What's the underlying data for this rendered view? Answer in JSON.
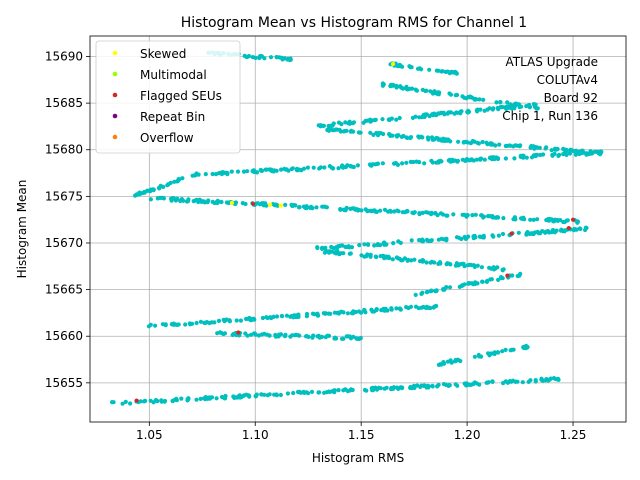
{
  "chart_data": {
    "type": "scatter",
    "title": "Histogram Mean vs Histogram RMS for Channel 1",
    "xlabel": "Histogram RMS",
    "ylabel": "Histogram Mean",
    "xlim": [
      1.022,
      1.275
    ],
    "ylim": [
      15650.8,
      15692.2
    ],
    "xticks": [
      1.05,
      1.1,
      1.15,
      1.2,
      1.25
    ],
    "xtick_labels": [
      "1.05",
      "1.10",
      "1.15",
      "1.20",
      "1.25"
    ],
    "yticks": [
      15655,
      15660,
      15665,
      15670,
      15675,
      15680,
      15685,
      15690
    ],
    "ytick_labels": [
      "15655",
      "15660",
      "15665",
      "15670",
      "15675",
      "15680",
      "15685",
      "15690"
    ],
    "grid": true,
    "legend_position": "top-left",
    "main_color": "#00bfbf",
    "annotation_lines": [
      "ATLAS Upgrade",
      "COLUTAv4",
      "Board 92",
      "Chip 1, Run 136"
    ],
    "legend": [
      {
        "label": "Skewed",
        "color": "#ffff00"
      },
      {
        "label": "Multimodal",
        "color": "#9aff00"
      },
      {
        "label": "Flagged SEUs",
        "color": "#d62728"
      },
      {
        "label": "Repeat Bin",
        "color": "#800080"
      },
      {
        "label": "Overflow",
        "color": "#ff7f0e"
      }
    ],
    "bands": [
      {
        "x1": 1.032,
        "y1": 15652.8,
        "x2": 1.243,
        "y2": 15655.4
      },
      {
        "x1": 1.186,
        "y1": 15657.0,
        "x2": 1.229,
        "y2": 15658.9
      },
      {
        "x1": 1.045,
        "y1": 15661.0,
        "x2": 1.185,
        "y2": 15663.2
      },
      {
        "x1": 1.08,
        "y1": 15660.3,
        "x2": 1.15,
        "y2": 15659.8
      },
      {
        "x1": 1.175,
        "y1": 15664.5,
        "x2": 1.225,
        "y2": 15666.6
      },
      {
        "x1": 1.128,
        "y1": 15669.2,
        "x2": 1.217,
        "y2": 15667.2
      },
      {
        "x1": 1.128,
        "y1": 15669.4,
        "x2": 1.256,
        "y2": 15671.5
      },
      {
        "x1": 1.05,
        "y1": 15674.8,
        "x2": 1.252,
        "y2": 15672.3
      },
      {
        "x1": 1.042,
        "y1": 15675.0,
        "x2": 1.066,
        "y2": 15676.9
      },
      {
        "x1": 1.07,
        "y1": 15677.3,
        "x2": 1.263,
        "y2": 15679.7
      },
      {
        "x1": 1.127,
        "y1": 15682.3,
        "x2": 1.264,
        "y2": 15679.6
      },
      {
        "x1": 1.127,
        "y1": 15682.5,
        "x2": 1.232,
        "y2": 15684.8
      },
      {
        "x1": 1.16,
        "y1": 15687.0,
        "x2": 1.233,
        "y2": 15684.5
      },
      {
        "x1": 1.16,
        "y1": 15689.3,
        "x2": 1.197,
        "y2": 15688.2
      },
      {
        "x1": 1.077,
        "y1": 15690.4,
        "x2": 1.117,
        "y2": 15689.7
      }
    ],
    "highlights": [
      {
        "category": "Skewed",
        "x": 1.089,
        "y": 15674.3
      },
      {
        "category": "Skewed",
        "x": 1.107,
        "y": 15674.1
      },
      {
        "category": "Skewed",
        "x": 1.112,
        "y": 15674.0
      },
      {
        "category": "Skewed",
        "x": 1.165,
        "y": 15689.2
      },
      {
        "category": "Flagged SEUs",
        "x": 1.044,
        "y": 15653.1
      },
      {
        "category": "Flagged SEUs",
        "x": 1.092,
        "y": 15660.4
      },
      {
        "category": "Flagged SEUs",
        "x": 1.099,
        "y": 15674.2
      },
      {
        "category": "Flagged SEUs",
        "x": 1.219,
        "y": 15666.5
      },
      {
        "category": "Flagged SEUs",
        "x": 1.221,
        "y": 15671.0
      },
      {
        "category": "Flagged SEUs",
        "x": 1.248,
        "y": 15671.6
      },
      {
        "category": "Flagged SEUs",
        "x": 1.25,
        "y": 15672.5
      }
    ]
  }
}
